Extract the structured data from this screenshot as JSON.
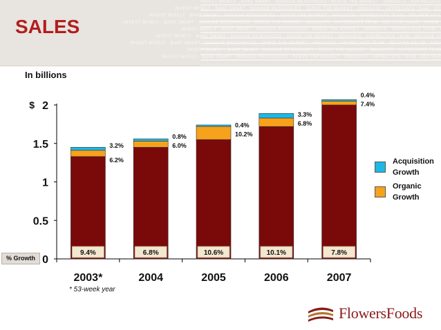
{
  "slide": {
    "title": "SALES",
    "units_label": "In billions",
    "growth_row_label": "% Growth",
    "footnote": "* 53-week year",
    "logo_text": "FlowersFoods",
    "header_texture_text": "INVEST WISELY · BAKE SMART · MANAGE RESOURCES · SERVE THE MARKET · INNOVATE · APPRECIATE TEAM · DELIVER VALUE · GROW"
  },
  "colors": {
    "base": "#7a0a0a",
    "organic": "#f7a21b",
    "acquisition": "#1fb8e6",
    "title": "#b01e1e"
  },
  "legend": [
    {
      "label": "Acquisition Growth",
      "color": "#1fb8e6"
    },
    {
      "label": "Organic Growth",
      "color": "#f7a21b"
    }
  ],
  "chart_data": {
    "type": "bar",
    "stacked": true,
    "categories": [
      "2003*",
      "2004",
      "2005",
      "2006",
      "2007"
    ],
    "series": [
      {
        "name": "",
        "values": [
          1.33,
          1.45,
          1.55,
          1.72,
          2.0
        ]
      },
      {
        "name": "Organic Growth",
        "values": [
          0.08,
          0.08,
          0.17,
          0.11,
          0.05
        ]
      },
      {
        "name": "Acquisition Growth",
        "values": [
          0.04,
          0.03,
          0.02,
          0.06,
          0.02
        ]
      }
    ],
    "organic_growth_labels": [
      "6.2%",
      "6.0%",
      "10.2%",
      "6.8%",
      "7.4%"
    ],
    "acquisition_growth_labels": [
      "3.2%",
      "0.8%",
      "0.4%",
      "3.3%",
      "0.4%"
    ],
    "total_growth_labels": [
      "9.4%",
      "6.8%",
      "10.6%",
      "10.1%",
      "7.8%"
    ],
    "y_ticks": [
      0,
      0.5,
      1,
      1.5,
      2
    ],
    "y_tick_labels": [
      "0",
      "0.5",
      "1",
      "1.5",
      "2"
    ],
    "y_prefix": "$",
    "ylim": [
      0,
      2.0
    ],
    "ylabel": "In billions",
    "xlabel": "",
    "grid": false,
    "legend_position": "right"
  }
}
